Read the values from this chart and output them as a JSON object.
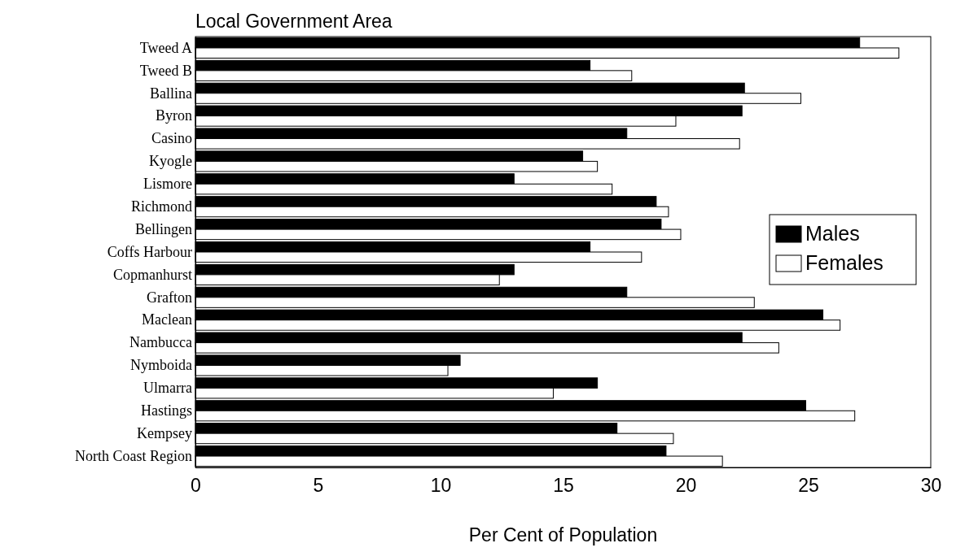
{
  "chart_data": {
    "type": "bar",
    "orientation": "horizontal",
    "title": "Local Government Area",
    "xlabel": "Per Cent of Population",
    "categories": [
      "Tweed A",
      "Tweed B",
      "Ballina",
      "Byron",
      "Casino",
      "Kyogle",
      "Lismore",
      "Richmond",
      "Bellingen",
      "Coffs Harbour",
      "Copmanhurst",
      "Grafton",
      "Maclean",
      "Nambucca",
      "Nymboida",
      "Ulmarra",
      "Hastings",
      "Kempsey",
      "North Coast Region"
    ],
    "series": [
      {
        "name": "Males",
        "color": "#000000",
        "values": [
          27.1,
          16.1,
          22.4,
          22.3,
          17.6,
          15.8,
          13.0,
          18.8,
          19.0,
          16.1,
          13.0,
          17.6,
          25.6,
          22.3,
          10.8,
          16.4,
          24.9,
          17.2,
          19.2
        ]
      },
      {
        "name": "Females",
        "color": "#ffffff",
        "values": [
          28.7,
          17.8,
          24.7,
          19.6,
          22.2,
          16.4,
          17.0,
          19.3,
          19.8,
          18.2,
          12.4,
          22.8,
          26.3,
          23.8,
          10.3,
          14.6,
          26.9,
          19.5,
          21.5
        ]
      }
    ],
    "xlim": [
      0,
      30
    ],
    "xticks": [
      0,
      5,
      10,
      15,
      20,
      25,
      30
    ],
    "grid": false,
    "legend": "right"
  }
}
